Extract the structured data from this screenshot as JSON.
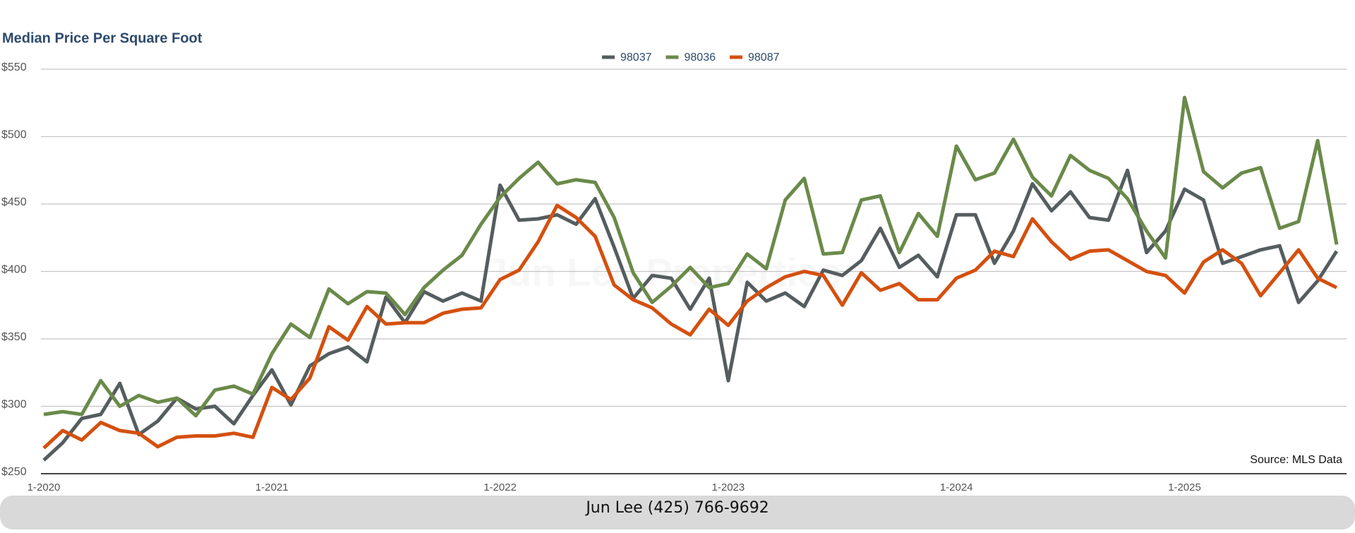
{
  "chart_data": {
    "type": "line",
    "title": "Median Price Per Square Foot",
    "categories": [
      "1-2020",
      null,
      null,
      null,
      null,
      null,
      null,
      null,
      null,
      null,
      null,
      null,
      "1-2021",
      null,
      null,
      null,
      null,
      null,
      null,
      null,
      null,
      null,
      null,
      null,
      "1-2022",
      null,
      null,
      null,
      null,
      null,
      null,
      null,
      null,
      null,
      null,
      null,
      "1-2023",
      null,
      null,
      null,
      null,
      null,
      null,
      null,
      null,
      null,
      null,
      null,
      "1-2024",
      null,
      null,
      null,
      null,
      null,
      null,
      null,
      null,
      null,
      null,
      null,
      "1-2025",
      null,
      null,
      null,
      null,
      null,
      null,
      null,
      null
    ],
    "series": [
      {
        "name": "98037",
        "color": "#555d5f",
        "values": [
          260,
          273,
          291,
          294,
          317,
          279,
          289,
          306,
          298,
          300,
          287,
          308,
          327,
          301,
          330,
          339,
          344,
          333,
          381,
          362,
          385,
          378,
          384,
          378,
          464,
          438,
          439,
          442,
          435,
          454,
          418,
          380,
          397,
          395,
          372,
          395,
          319,
          392,
          378,
          384,
          374,
          401,
          397,
          408,
          432,
          403,
          412,
          396,
          442,
          442,
          406,
          430,
          465,
          445,
          459,
          440,
          438,
          475,
          414,
          430,
          461,
          453,
          406,
          411,
          416,
          419,
          377,
          393,
          415
        ]
      },
      {
        "name": "98036",
        "color": "#6a8a4a",
        "values": [
          294,
          296,
          294,
          319,
          300,
          308,
          303,
          306,
          293,
          312,
          315,
          309,
          339,
          361,
          351,
          387,
          376,
          385,
          384,
          368,
          388,
          401,
          412,
          435,
          455,
          469,
          481,
          465,
          468,
          466,
          440,
          399,
          377,
          389,
          403,
          388,
          391,
          413,
          402,
          453,
          469,
          413,
          414,
          453,
          456,
          414,
          443,
          426,
          493,
          468,
          473,
          498,
          470,
          456,
          486,
          475,
          469,
          454,
          430,
          410,
          529,
          474,
          462,
          473,
          477,
          432,
          437,
          497,
          420
        ]
      },
      {
        "name": "98087",
        "color": "#d4500f",
        "values": [
          269,
          282,
          275,
          288,
          282,
          280,
          270,
          277,
          278,
          278,
          280,
          277,
          314,
          305,
          321,
          359,
          349,
          374,
          361,
          362,
          362,
          369,
          372,
          373,
          394,
          401,
          422,
          449,
          440,
          426,
          390,
          379,
          373,
          361,
          353,
          372,
          360,
          378,
          388,
          396,
          400,
          397,
          375,
          399,
          386,
          391,
          379,
          379,
          395,
          401,
          415,
          411,
          439,
          422,
          409,
          415,
          416,
          408,
          400,
          397,
          384,
          407,
          416,
          406,
          382,
          399,
          416,
          395,
          388
        ]
      }
    ],
    "ylim": [
      250,
      550
    ],
    "yticks": [
      {
        "value": 250,
        "label": "$250"
      },
      {
        "value": 300,
        "label": "$300"
      },
      {
        "value": 350,
        "label": "$350"
      },
      {
        "value": 400,
        "label": "$400"
      },
      {
        "value": 450,
        "label": "$450"
      },
      {
        "value": 500,
        "label": "$500"
      },
      {
        "value": 550,
        "label": "$550"
      }
    ],
    "grid": true,
    "legend": "top",
    "source": "Source: MLS Data",
    "watermark": "Jun Lee Properties"
  },
  "footer": "Jun Lee (425) 766-9692"
}
